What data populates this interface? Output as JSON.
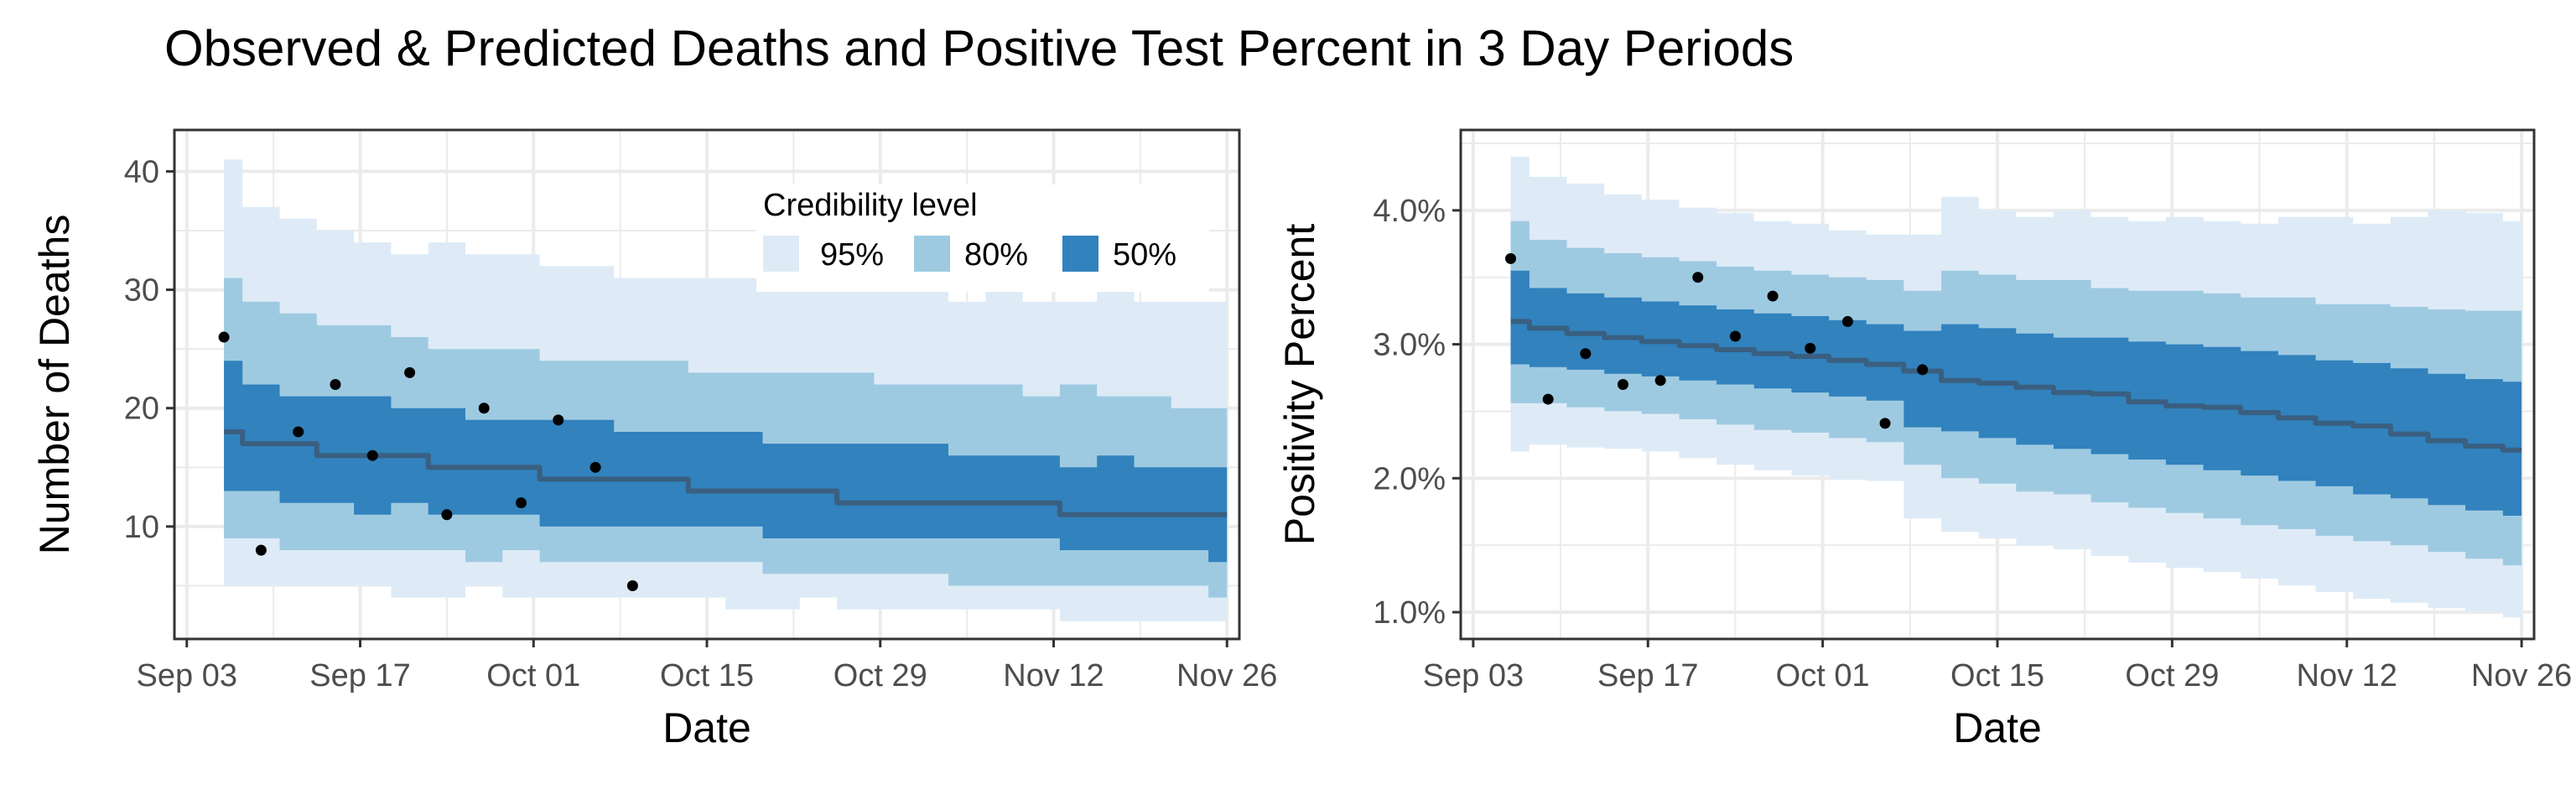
{
  "title": "Observed & Predicted Deaths and Positive Test Percent in 3 Day Periods",
  "colors": {
    "band95": "#deebf7",
    "band80": "#9ecae1",
    "band50": "#3182bd",
    "median": "#3a5f80",
    "point": "#000000",
    "grid": "#ebebeb",
    "border": "#333333"
  },
  "legend": {
    "title": "Credibility level",
    "placement": "top-right (inside left panel)",
    "items": [
      {
        "label": "95%",
        "color": "#deebf7"
      },
      {
        "label": "80%",
        "color": "#9ecae1"
      },
      {
        "label": "50%",
        "color": "#3182bd"
      }
    ]
  },
  "chart_data": [
    {
      "type": "area",
      "xlabel": "Date",
      "ylabel": "Number of Deaths",
      "xlim": [
        "2020-09-02",
        "2020-11-27"
      ],
      "ylim": [
        0.5,
        43.5
      ],
      "x_ticks": [
        "Sep 03",
        "Sep 17",
        "Oct 01",
        "Oct 15",
        "Oct 29",
        "Nov 12",
        "Nov 26"
      ],
      "x_tick_dates": [
        "2020-09-03",
        "2020-09-17",
        "2020-10-01",
        "2020-10-15",
        "2020-10-29",
        "2020-11-12",
        "2020-11-26"
      ],
      "y_ticks": [
        10,
        20,
        30,
        40
      ],
      "y_tick_labels": [
        "10",
        "20",
        "30",
        "40"
      ],
      "grid": true,
      "band_dates": [
        "2020-09-06",
        "2020-09-09",
        "2020-09-12",
        "2020-09-15",
        "2020-09-18",
        "2020-09-21",
        "2020-09-24",
        "2020-09-27",
        "2020-09-30",
        "2020-10-03",
        "2020-10-06",
        "2020-10-09",
        "2020-10-12",
        "2020-10-15",
        "2020-10-18",
        "2020-10-21",
        "2020-10-24",
        "2020-10-27",
        "2020-10-30",
        "2020-11-02",
        "2020-11-05",
        "2020-11-08",
        "2020-11-11",
        "2020-11-14",
        "2020-11-17",
        "2020-11-20",
        "2020-11-23",
        "2020-11-26"
      ],
      "lo95": [
        5,
        5,
        5,
        5,
        5,
        4,
        4,
        5,
        4,
        4,
        4,
        4,
        4,
        4,
        3,
        3,
        4,
        3,
        3,
        3,
        3,
        3,
        3,
        2,
        2,
        2,
        2,
        2
      ],
      "hi95": [
        41,
        37,
        36,
        35,
        34,
        33,
        34,
        33,
        33,
        32,
        32,
        31,
        31,
        31,
        31,
        30,
        31,
        30,
        30,
        30,
        29,
        30,
        29,
        29,
        30,
        29,
        29,
        29
      ],
      "lo80": [
        9,
        9,
        8,
        8,
        8,
        8,
        8,
        7,
        8,
        7,
        7,
        7,
        7,
        7,
        7,
        6,
        6,
        6,
        6,
        6,
        5,
        5,
        5,
        5,
        5,
        5,
        5,
        4
      ],
      "hi80": [
        31,
        29,
        28,
        27,
        27,
        26,
        25,
        25,
        25,
        24,
        24,
        24,
        24,
        23,
        23,
        23,
        23,
        23,
        22,
        22,
        22,
        22,
        21,
        22,
        21,
        21,
        20,
        20
      ],
      "lo50": [
        13,
        13,
        12,
        12,
        11,
        12,
        11,
        11,
        11,
        10,
        10,
        10,
        10,
        10,
        10,
        9,
        9,
        9,
        9,
        9,
        9,
        9,
        9,
        8,
        8,
        8,
        8,
        7
      ],
      "hi50": [
        24,
        22,
        21,
        21,
        21,
        20,
        20,
        19,
        19,
        19,
        19,
        18,
        18,
        18,
        18,
        17,
        17,
        17,
        17,
        17,
        16,
        16,
        16,
        15,
        16,
        15,
        15,
        15
      ],
      "median": [
        18,
        17,
        17,
        16,
        16,
        16,
        15,
        15,
        15,
        14,
        14,
        14,
        14,
        13,
        13,
        13,
        13,
        12,
        12,
        12,
        12,
        12,
        12,
        11,
        11,
        11,
        11,
        11
      ],
      "observed_dates": [
        "2020-09-06",
        "2020-09-09",
        "2020-09-12",
        "2020-09-15",
        "2020-09-18",
        "2020-09-21",
        "2020-09-24",
        "2020-09-27",
        "2020-09-30",
        "2020-10-03",
        "2020-10-06",
        "2020-10-09"
      ],
      "observed": [
        26,
        8,
        18,
        22,
        16,
        23,
        11,
        20,
        12,
        19,
        15,
        5
      ]
    },
    {
      "type": "area",
      "xlabel": "Date",
      "ylabel": "Positivity Percent",
      "xlim": [
        "2020-09-02",
        "2020-11-27"
      ],
      "ylim": [
        0.8,
        4.6
      ],
      "x_ticks": [
        "Sep 03",
        "Sep 17",
        "Oct 01",
        "Oct 15",
        "Oct 29",
        "Nov 12",
        "Nov 26"
      ],
      "x_tick_dates": [
        "2020-09-03",
        "2020-09-17",
        "2020-10-01",
        "2020-10-15",
        "2020-10-29",
        "2020-11-12",
        "2020-11-26"
      ],
      "y_ticks": [
        1,
        2,
        3,
        4
      ],
      "y_tick_labels": [
        "1.0%",
        "2.0%",
        "3.0%",
        "4.0%"
      ],
      "grid": true,
      "band_dates": [
        "2020-09-06",
        "2020-09-09",
        "2020-09-12",
        "2020-09-15",
        "2020-09-18",
        "2020-09-21",
        "2020-09-24",
        "2020-09-27",
        "2020-09-30",
        "2020-10-03",
        "2020-10-06",
        "2020-10-09",
        "2020-10-12",
        "2020-10-15",
        "2020-10-18",
        "2020-10-21",
        "2020-10-24",
        "2020-10-27",
        "2020-10-30",
        "2020-11-02",
        "2020-11-05",
        "2020-11-08",
        "2020-11-11",
        "2020-11-14",
        "2020-11-17",
        "2020-11-20",
        "2020-11-23",
        "2020-11-26"
      ],
      "lo95": [
        2.2,
        2.25,
        2.23,
        2.22,
        2.2,
        2.15,
        2.1,
        2.06,
        2.02,
        1.99,
        1.98,
        1.7,
        1.6,
        1.55,
        1.5,
        1.47,
        1.42,
        1.37,
        1.33,
        1.3,
        1.25,
        1.2,
        1.15,
        1.1,
        1.07,
        1.03,
        1.0,
        0.96
      ],
      "hi95": [
        4.4,
        4.25,
        4.2,
        4.12,
        4.08,
        4.02,
        3.98,
        3.92,
        3.9,
        3.85,
        3.82,
        3.82,
        4.1,
        4.0,
        3.95,
        4.0,
        3.95,
        3.92,
        3.95,
        3.92,
        3.9,
        3.95,
        3.95,
        3.9,
        3.95,
        4.0,
        3.98,
        3.92
      ],
      "lo80": [
        2.56,
        2.56,
        2.53,
        2.5,
        2.48,
        2.44,
        2.4,
        2.36,
        2.34,
        2.3,
        2.27,
        2.1,
        2.0,
        1.96,
        1.9,
        1.88,
        1.82,
        1.78,
        1.74,
        1.7,
        1.65,
        1.62,
        1.57,
        1.53,
        1.5,
        1.45,
        1.4,
        1.35
      ],
      "hi80": [
        3.92,
        3.78,
        3.72,
        3.68,
        3.65,
        3.62,
        3.58,
        3.55,
        3.52,
        3.5,
        3.48,
        3.4,
        3.55,
        3.52,
        3.48,
        3.48,
        3.42,
        3.4,
        3.4,
        3.38,
        3.35,
        3.35,
        3.3,
        3.3,
        3.28,
        3.26,
        3.25,
        3.25
      ],
      "lo50": [
        2.85,
        2.83,
        2.81,
        2.78,
        2.76,
        2.73,
        2.7,
        2.67,
        2.64,
        2.61,
        2.58,
        2.38,
        2.35,
        2.3,
        2.25,
        2.22,
        2.18,
        2.14,
        2.1,
        2.06,
        2.02,
        1.98,
        1.94,
        1.88,
        1.85,
        1.8,
        1.76,
        1.72
      ],
      "hi50": [
        3.55,
        3.42,
        3.38,
        3.35,
        3.32,
        3.29,
        3.26,
        3.23,
        3.21,
        3.18,
        3.15,
        3.1,
        3.15,
        3.12,
        3.08,
        3.05,
        3.05,
        3.02,
        3.0,
        2.98,
        2.95,
        2.92,
        2.88,
        2.86,
        2.82,
        2.78,
        2.74,
        2.72
      ],
      "median": [
        3.17,
        3.12,
        3.08,
        3.05,
        3.02,
        2.99,
        2.96,
        2.93,
        2.91,
        2.88,
        2.85,
        2.8,
        2.73,
        2.71,
        2.68,
        2.64,
        2.63,
        2.57,
        2.54,
        2.53,
        2.49,
        2.45,
        2.41,
        2.39,
        2.33,
        2.28,
        2.24,
        2.21
      ],
      "observed_dates": [
        "2020-09-06",
        "2020-09-09",
        "2020-09-12",
        "2020-09-15",
        "2020-09-18",
        "2020-09-21",
        "2020-09-24",
        "2020-09-27",
        "2020-09-30",
        "2020-10-03",
        "2020-10-06",
        "2020-10-09"
      ],
      "observed": [
        3.64,
        2.59,
        2.93,
        2.7,
        2.73,
        3.5,
        3.06,
        3.36,
        2.97,
        3.17,
        2.41,
        2.81
      ]
    }
  ]
}
